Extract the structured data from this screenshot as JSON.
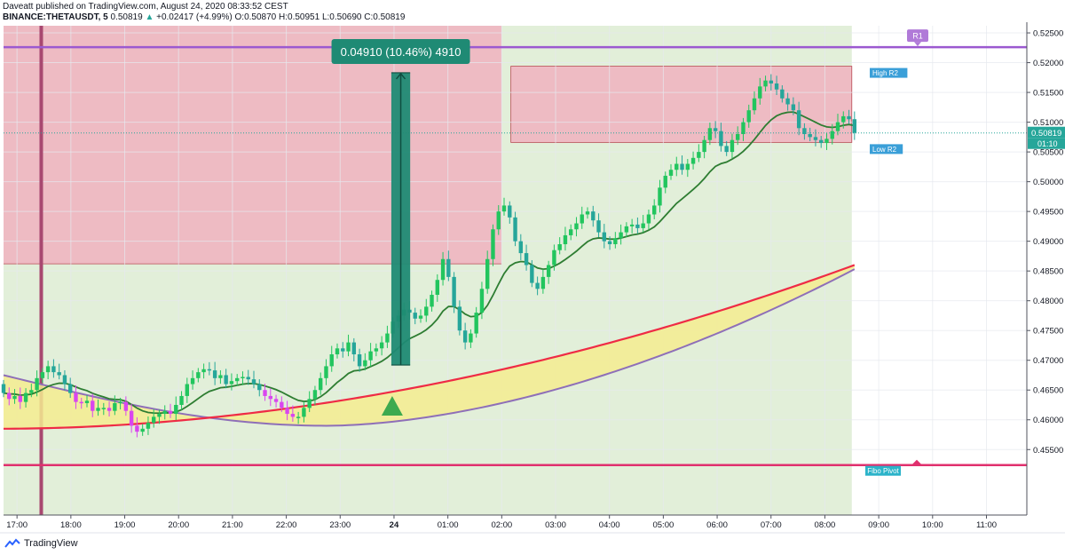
{
  "header": {
    "line1": "Daveatt published on TradingView.com, August 24, 2020 08:33:52 CEST",
    "symbol": "BINANCE:THETAUSDT, 5",
    "last": "0.50819",
    "arrow": "▲",
    "change": "+0.02417 (+4.99%)",
    "open": "O:0.50870",
    "high": "H:0.50951",
    "low": "L:0.50690",
    "close": "C:0.50819"
  },
  "footer": {
    "brand": "TradingView"
  },
  "colors": {
    "bull": "#26a69a",
    "bull_bright": "#22c55e",
    "bear": "#d946ef",
    "fast_ma": "#2e7d32",
    "red_ma": "#ef2b45",
    "purple_ma": "#8e6fb8",
    "ribbon": "#f5ec8f",
    "red_zone": "#eebbc3",
    "green_zone": "#e2efd9",
    "r1_line": "#9b59d0",
    "pivot_line": "#e0306e",
    "session_line": "#a84870",
    "measure": "#1f8a74",
    "last_price": "#26a69a"
  },
  "chart_data": {
    "type": "candlestick",
    "interval": "5",
    "ylim": [
      0.444,
      0.5262
    ],
    "y_ticks": [
      "0.52500",
      "0.52000",
      "0.51500",
      "0.51000",
      "0.50500",
      "0.50000",
      "0.49500",
      "0.49000",
      "0.48500",
      "0.48000",
      "0.47500",
      "0.47000",
      "0.46500",
      "0.46000",
      "0.45500"
    ],
    "x_ticks": [
      "17:00",
      "18:00",
      "19:00",
      "20:00",
      "21:00",
      "22:00",
      "23:00",
      "24",
      "01:00",
      "02:00",
      "03:00",
      "04:00",
      "05:00",
      "06:00",
      "07:00",
      "08:00",
      "09:00",
      "10:00",
      "11:00"
    ],
    "x_range_hours": [
      16.75,
      11.75
    ],
    "last_price": "0.50819",
    "countdown": "01:10",
    "levels": [
      {
        "name": "R1",
        "price": 0.5226
      },
      {
        "name": "High R2",
        "price": 0.5194
      },
      {
        "name": "Low R2",
        "price": 0.5066
      },
      {
        "name": "Fibo Pivot",
        "price": 0.4524
      }
    ],
    "zones": [
      {
        "type": "sell",
        "from_time": 16.75,
        "to_time": 26.0,
        "price_top": 0.5262,
        "price_bottom": 0.4862
      },
      {
        "type": "buy",
        "from_time": 16.75,
        "to_time": 26.0,
        "price_top": 0.4862,
        "price_bottom": 0.444
      },
      {
        "type": "buy",
        "from_time": 26.0,
        "to_time": 32.5,
        "price_top": 0.5262,
        "price_bottom": 0.444
      },
      {
        "type": "sell",
        "from_time": 26.17,
        "to_time": 32.5,
        "price_top": 0.5194,
        "price_bottom": 0.5066
      }
    ],
    "measure": {
      "label": "0.04910 (10.46%) 4910",
      "time_from": 23.95,
      "time_to": 24.3,
      "price_from": 0.4692,
      "price_to": 0.5183
    },
    "signal": {
      "type": "buy",
      "time": 23.95,
      "price": 0.4625
    },
    "closes": [
      0.4645,
      0.4635,
      0.464,
      0.463,
      0.4645,
      0.465,
      0.467,
      0.468,
      0.469,
      0.468,
      0.4675,
      0.466,
      0.4645,
      0.463,
      0.4628,
      0.4632,
      0.4615,
      0.462,
      0.462,
      0.4615,
      0.4628,
      0.463,
      0.4615,
      0.459,
      0.458,
      0.4585,
      0.4595,
      0.4605,
      0.461,
      0.4615,
      0.461,
      0.4625,
      0.464,
      0.466,
      0.467,
      0.468,
      0.4685,
      0.4683,
      0.467,
      0.4675,
      0.466,
      0.4665,
      0.467,
      0.4672,
      0.4668,
      0.466,
      0.465,
      0.464,
      0.4635,
      0.463,
      0.462,
      0.461,
      0.4605,
      0.4605,
      0.462,
      0.4635,
      0.465,
      0.467,
      0.469,
      0.471,
      0.472,
      0.4715,
      0.473,
      0.471,
      0.469,
      0.47,
      0.4715,
      0.472,
      0.473,
      0.4745,
      0.4765,
      0.4775,
      0.4785,
      0.478,
      0.477,
      0.4775,
      0.479,
      0.481,
      0.4835,
      0.487,
      0.484,
      0.479,
      0.475,
      0.473,
      0.4745,
      0.478,
      0.482,
      0.487,
      0.492,
      0.495,
      0.496,
      0.494,
      0.49,
      0.488,
      0.486,
      0.483,
      0.482,
      0.484,
      0.486,
      0.4885,
      0.4895,
      0.491,
      0.492,
      0.493,
      0.4945,
      0.495,
      0.4935,
      0.4915,
      0.49,
      0.4895,
      0.4905,
      0.4915,
      0.4925,
      0.4928,
      0.4922,
      0.493,
      0.4945,
      0.496,
      0.499,
      0.501,
      0.502,
      0.503,
      0.502,
      0.503,
      0.504,
      0.505,
      0.507,
      0.509,
      0.5085,
      0.506,
      0.505,
      0.507,
      0.508,
      0.51,
      0.512,
      0.514,
      0.516,
      0.517,
      0.5165,
      0.5155,
      0.514,
      0.513,
      0.512,
      0.509,
      0.508,
      0.5075,
      0.507,
      0.5065,
      0.5072,
      0.5085,
      0.51,
      0.511,
      0.5105,
      0.5082
    ]
  }
}
